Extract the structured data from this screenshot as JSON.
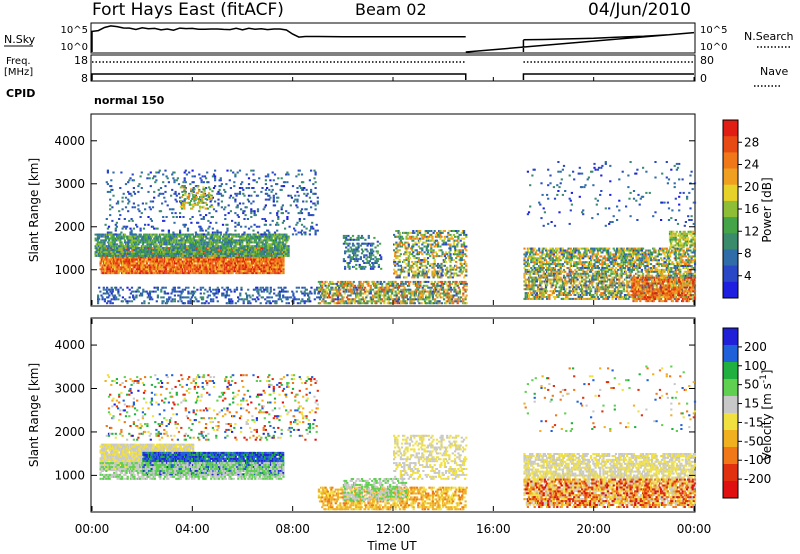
{
  "header": {
    "station": "Fort Hays East (fitACF)",
    "beam": "Beam 02",
    "date": "04/Jun/2010"
  },
  "strip": {
    "nsky_label": "N.Sky",
    "nsky_ticks": [
      "10^5",
      "10^0"
    ],
    "nsearch_label": "N.Search",
    "nsearch_ticks": [
      "10^5",
      "10^0"
    ],
    "freq_label": "Freq.",
    "freq_unit": "[MHz]",
    "freq_ticks": [
      "18",
      "8"
    ],
    "nave_label": "Nave",
    "nave_ticks": [
      "80",
      "0"
    ],
    "cpid_label": "CPID",
    "cpid_value": "normal 150"
  },
  "colors": {
    "power": [
      "#1f1fe0",
      "#2a48c6",
      "#2f6ca8",
      "#3a8a6c",
      "#45a348",
      "#8dbe36",
      "#e7d22a",
      "#f0a020",
      "#f07818",
      "#e84a14",
      "#e01e14"
    ],
    "velocity": [
      "#2020d8",
      "#2060d8",
      "#20b040",
      "#60d050",
      "#c8c8c8",
      "#f0e040",
      "#f0b020",
      "#f07818",
      "#e03010",
      "#e01010"
    ]
  },
  "chart_data": [
    {
      "type": "line",
      "name": "strip",
      "x": [
        0,
        0.5,
        1,
        1.5,
        2,
        2.5,
        3,
        3.5,
        4,
        4.5,
        5,
        5.5,
        6,
        6.5,
        7,
        7.5,
        8,
        8.5,
        9,
        10,
        11,
        12,
        13,
        14,
        14.9,
        17.2,
        18,
        19,
        20,
        21,
        22,
        23,
        24
      ],
      "series": [
        {
          "values": [
            0.72,
            0.85,
            0.88,
            0.83,
            0.84,
            0.82,
            0.8,
            0.83,
            0.82,
            0.79,
            0.8,
            0.78,
            0.77,
            0.79,
            0.78,
            0.8,
            0.63,
            0.55,
            0.55,
            0.54,
            0.54,
            0.54,
            0.54,
            0.54,
            0.54,
            0.44,
            0.45,
            0.47,
            0.49,
            0.53,
            0.56,
            0.61,
            0.68
          ]
        }
      ],
      "gap_hours": [
        14.9,
        17.2
      ],
      "xlim": [
        0,
        24
      ]
    },
    {
      "type": "heatmap",
      "name": "power",
      "xlabel": "",
      "ylabel": "Slant Range [km]",
      "xlim": [
        0,
        24
      ],
      "ylim": [
        180,
        4600
      ],
      "yticks": [
        "1000",
        "2000",
        "3000",
        "4000"
      ],
      "colorbar": {
        "label": "Power [dB]",
        "ticks": [
          "4",
          "8",
          "12",
          "16",
          "20",
          "24",
          "28"
        ],
        "range": [
          0,
          30
        ]
      },
      "regions": [
        {
          "t0": 0.3,
          "t1": 7.6,
          "r0": 900,
          "r1": 1500,
          "v0": 18,
          "v1": 30,
          "d": 0.85
        },
        {
          "t0": 0.1,
          "t1": 7.8,
          "r0": 1300,
          "r1": 1800,
          "v0": 6,
          "v1": 16,
          "d": 0.7
        },
        {
          "t0": 0.5,
          "t1": 9.0,
          "r0": 1800,
          "r1": 3300,
          "v0": 2,
          "v1": 10,
          "d": 0.1
        },
        {
          "t0": 3.5,
          "t1": 4.8,
          "r0": 2400,
          "r1": 2900,
          "v0": 10,
          "v1": 22,
          "d": 0.3
        },
        {
          "t0": 0.2,
          "t1": 9.0,
          "r0": 200,
          "r1": 600,
          "v0": 2,
          "v1": 10,
          "d": 0.25
        },
        {
          "t0": 9.0,
          "t1": 14.9,
          "r0": 200,
          "r1": 700,
          "v0": 4,
          "v1": 26,
          "d": 0.5
        },
        {
          "t0": 10.0,
          "t1": 11.5,
          "r0": 1000,
          "r1": 1800,
          "v0": 2,
          "v1": 14,
          "d": 0.3
        },
        {
          "t0": 12.0,
          "t1": 14.9,
          "r0": 800,
          "r1": 1900,
          "v0": 4,
          "v1": 24,
          "d": 0.35
        },
        {
          "t0": 17.2,
          "t1": 24,
          "r0": 300,
          "r1": 1500,
          "v0": 4,
          "v1": 24,
          "d": 0.55
        },
        {
          "t0": 21.5,
          "t1": 24,
          "r0": 250,
          "r1": 800,
          "v0": 18,
          "v1": 30,
          "d": 0.5
        },
        {
          "t0": 23.0,
          "t1": 24,
          "r0": 1500,
          "r1": 1900,
          "v0": 10,
          "v1": 20,
          "d": 0.6
        },
        {
          "t0": 17.2,
          "t1": 24,
          "r0": 2000,
          "r1": 3500,
          "v0": 2,
          "v1": 10,
          "d": 0.03
        }
      ]
    },
    {
      "type": "heatmap",
      "name": "velocity",
      "xlabel": "Time UT",
      "ylabel": "Slant Range [km]",
      "xlim": [
        0,
        24
      ],
      "ylim": [
        180,
        4600
      ],
      "xticks": [
        "00:00",
        "04:00",
        "08:00",
        "12:00",
        "16:00",
        "20:00",
        "00:00"
      ],
      "yticks": [
        "1000",
        "2000",
        "3000",
        "4000"
      ],
      "colorbar": {
        "label": "Velocity [m s^-1]",
        "ticks": [
          "200",
          "100",
          "50",
          "15",
          "-15",
          "-50",
          "-100",
          "-200"
        ],
        "range": [
          -250,
          250
        ]
      },
      "regions": [
        {
          "t0": 0.3,
          "t1": 4.0,
          "r0": 1100,
          "r1": 1700,
          "v0": -15,
          "v1": 15,
          "d": 0.85
        },
        {
          "t0": 2.0,
          "t1": 7.6,
          "r0": 1000,
          "r1": 1500,
          "v0": 120,
          "v1": 240,
          "d": 0.85
        },
        {
          "t0": 0.3,
          "t1": 7.6,
          "r0": 900,
          "r1": 1300,
          "v0": 20,
          "v1": 80,
          "d": 0.55
        },
        {
          "t0": 0.5,
          "t1": 9.0,
          "r0": 1800,
          "r1": 3300,
          "v0": -220,
          "v1": 220,
          "d": 0.1
        },
        {
          "t0": 9.0,
          "t1": 14.9,
          "r0": 200,
          "r1": 700,
          "v0": -120,
          "v1": -20,
          "d": 0.5
        },
        {
          "t0": 10.0,
          "t1": 12.5,
          "r0": 400,
          "r1": 900,
          "v0": 20,
          "v1": 80,
          "d": 0.4
        },
        {
          "t0": 12.0,
          "t1": 14.9,
          "r0": 900,
          "r1": 1900,
          "v0": -15,
          "v1": 15,
          "d": 0.3
        },
        {
          "t0": 17.2,
          "t1": 24,
          "r0": 300,
          "r1": 1500,
          "v0": -15,
          "v1": 15,
          "d": 0.55
        },
        {
          "t0": 17.2,
          "t1": 24,
          "r0": 250,
          "r1": 900,
          "v0": -240,
          "v1": -40,
          "d": 0.35
        },
        {
          "t0": 17.2,
          "t1": 24,
          "r0": 2000,
          "r1": 3500,
          "v0": -200,
          "v1": 200,
          "d": 0.03
        }
      ]
    }
  ]
}
